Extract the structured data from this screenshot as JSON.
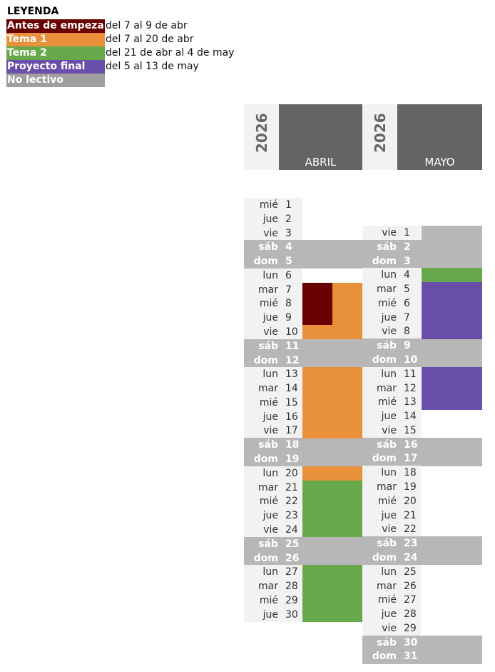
{
  "legend": {
    "title": "LEYENDA",
    "items": [
      {
        "label": "Antes de empeza",
        "range": "del 7 al 9 de abr",
        "color": "#6b0000",
        "icon": "legend-swatch-antes"
      },
      {
        "label": "Tema 1",
        "range": "del 7 al 20 de abr",
        "color": "#e8913a",
        "icon": "legend-swatch-tema1"
      },
      {
        "label": "Tema 2",
        "range": "del 21 de abr al 4 de may",
        "color": "#67a84b",
        "icon": "legend-swatch-tema2"
      },
      {
        "label": "Proyecto final",
        "range": "del 5 al 13 de may",
        "color": "#6a4faa",
        "icon": "legend-swatch-proyecto"
      },
      {
        "label": "No lectivo",
        "range": "",
        "color": "#9e9e9e",
        "icon": "legend-swatch-nolectivo"
      }
    ]
  },
  "colors": {
    "weekday_bg": "#f2f2f2",
    "weekend_bg": "#b7b7b7",
    "month_header_bg": "#646464"
  },
  "months": [
    {
      "year": "2026",
      "name": "ABRIL",
      "days": [
        {
          "wd": "mié",
          "d": "1"
        },
        {
          "wd": "jue",
          "d": "2"
        },
        {
          "wd": "vie",
          "d": "3"
        },
        {
          "wd": "sáb",
          "d": "4",
          "we": true
        },
        {
          "wd": "dom",
          "d": "5",
          "we": true
        },
        {
          "wd": "lun",
          "d": "6"
        },
        {
          "wd": "mar",
          "d": "7"
        },
        {
          "wd": "mié",
          "d": "8"
        },
        {
          "wd": "jue",
          "d": "9"
        },
        {
          "wd": "vie",
          "d": "10"
        },
        {
          "wd": "sáb",
          "d": "11",
          "we": true
        },
        {
          "wd": "dom",
          "d": "12",
          "we": true
        },
        {
          "wd": "lun",
          "d": "13"
        },
        {
          "wd": "mar",
          "d": "14"
        },
        {
          "wd": "mié",
          "d": "15"
        },
        {
          "wd": "jue",
          "d": "16"
        },
        {
          "wd": "vie",
          "d": "17"
        },
        {
          "wd": "sáb",
          "d": "18",
          "we": true
        },
        {
          "wd": "dom",
          "d": "19",
          "we": true
        },
        {
          "wd": "lun",
          "d": "20"
        },
        {
          "wd": "mar",
          "d": "21"
        },
        {
          "wd": "mié",
          "d": "22"
        },
        {
          "wd": "jue",
          "d": "23"
        },
        {
          "wd": "vie",
          "d": "24"
        },
        {
          "wd": "sáb",
          "d": "25",
          "we": true
        },
        {
          "wd": "dom",
          "d": "26",
          "we": true
        },
        {
          "wd": "lun",
          "d": "27"
        },
        {
          "wd": "mar",
          "d": "28"
        },
        {
          "wd": "mié",
          "d": "29"
        },
        {
          "wd": "jue",
          "d": "30"
        }
      ],
      "bars": [
        {
          "name": "antes-de-empezar",
          "color": "#6b0000",
          "from": 7,
          "to": 9,
          "half": "left"
        },
        {
          "name": "tema-1",
          "color": "#e8913a",
          "from": 7,
          "to": 9,
          "half": "right"
        },
        {
          "name": "tema-1",
          "color": "#e8913a",
          "from": 10,
          "to": 10,
          "half": "full"
        },
        {
          "name": "tema-1",
          "color": "#e8913a",
          "from": 13,
          "to": 17,
          "half": "full"
        },
        {
          "name": "tema-1",
          "color": "#e8913a",
          "from": 20,
          "to": 20,
          "half": "full"
        },
        {
          "name": "tema-2",
          "color": "#67a84b",
          "from": 21,
          "to": 24,
          "half": "full"
        },
        {
          "name": "tema-2",
          "color": "#67a84b",
          "from": 27,
          "to": 30,
          "half": "full"
        }
      ]
    },
    {
      "year": "2026",
      "name": "MAYO",
      "days": [
        {
          "wd": "vie",
          "d": "1"
        },
        {
          "wd": "sáb",
          "d": "2",
          "we": true
        },
        {
          "wd": "dom",
          "d": "3",
          "we": true
        },
        {
          "wd": "lun",
          "d": "4"
        },
        {
          "wd": "mar",
          "d": "5"
        },
        {
          "wd": "mié",
          "d": "6"
        },
        {
          "wd": "jue",
          "d": "7"
        },
        {
          "wd": "vie",
          "d": "8"
        },
        {
          "wd": "sáb",
          "d": "9",
          "we": true
        },
        {
          "wd": "dom",
          "d": "10",
          "we": true
        },
        {
          "wd": "lun",
          "d": "11"
        },
        {
          "wd": "mar",
          "d": "12"
        },
        {
          "wd": "mié",
          "d": "13"
        },
        {
          "wd": "jue",
          "d": "14"
        },
        {
          "wd": "vie",
          "d": "15"
        },
        {
          "wd": "sáb",
          "d": "16",
          "we": true
        },
        {
          "wd": "dom",
          "d": "17",
          "we": true
        },
        {
          "wd": "lun",
          "d": "18"
        },
        {
          "wd": "mar",
          "d": "19"
        },
        {
          "wd": "mié",
          "d": "20"
        },
        {
          "wd": "jue",
          "d": "21"
        },
        {
          "wd": "vie",
          "d": "22"
        },
        {
          "wd": "sáb",
          "d": "23",
          "we": true
        },
        {
          "wd": "dom",
          "d": "24",
          "we": true
        },
        {
          "wd": "lun",
          "d": "25"
        },
        {
          "wd": "mar",
          "d": "26"
        },
        {
          "wd": "mié",
          "d": "27"
        },
        {
          "wd": "jue",
          "d": "28"
        },
        {
          "wd": "vie",
          "d": "29"
        },
        {
          "wd": "sáb",
          "d": "30",
          "we": true
        },
        {
          "wd": "dom",
          "d": "31",
          "we": true
        }
      ],
      "bars": [
        {
          "name": "no-lectivo",
          "color": "#b7b7b7",
          "from": 1,
          "to": 3,
          "half": "full"
        },
        {
          "name": "tema-2",
          "color": "#67a84b",
          "from": 4,
          "to": 4,
          "half": "full"
        },
        {
          "name": "proyecto-final",
          "color": "#6a4faa",
          "from": 5,
          "to": 8,
          "half": "full"
        },
        {
          "name": "proyecto-final",
          "color": "#6a4faa",
          "from": 11,
          "to": 13,
          "half": "full"
        }
      ]
    }
  ]
}
